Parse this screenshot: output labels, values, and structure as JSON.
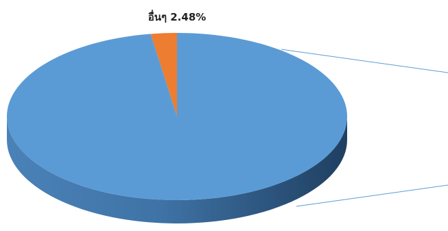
{
  "chart_data": {
    "type": "pie",
    "categories": [
      "อื่นๆ",
      null
    ],
    "values": [
      2.48,
      97.52
    ],
    "value_labels": [
      "2.48%",
      null
    ],
    "colors": [
      "#ed7d31",
      "#5b9bd5"
    ]
  }
}
